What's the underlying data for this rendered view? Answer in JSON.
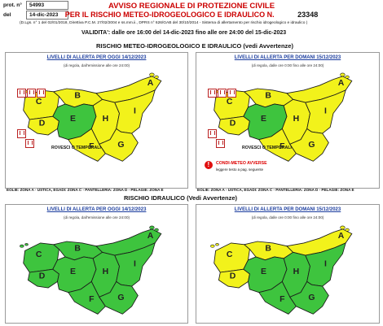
{
  "header": {
    "prot_label": "prot. n°",
    "prot_value": "54993",
    "del_label": "del",
    "del_value": "14-dic-2023",
    "title_line1": "AVVISO REGIONALE DI PROTEZIONE CIVILE",
    "title_line2": "PER IL RISCHIO METEO-IDROGEOLOGICO E IDRAULICO N.",
    "avviso_number": "23348",
    "legal_note": "(D.Lgs. n° 1 del 02/01/2018, Direttiva P.C.M. 27/02/2004 e ss.mm.ii., DPRS n° 626/GAB del 30/10/2014 - Sistema di allertamento per rischio idrogeologico e idraulico )",
    "validity": "VALIDITA': dalle ore    16:00  del    14-dic-2023    fino alle ore 24:00  del    15-dic-2023"
  },
  "section1": {
    "title": "RISCHIO METEO-IDROGEOLOGICO E IDRAULICO (vedi Avvertenze)",
    "today": {
      "title": "LIVELLI DI ALLERTA PER OGGI 14/12/2023",
      "subtitle": "(di regola, dall'emissione alle ore 24:00)",
      "legend_label": "ROVESCI O TEMPORALI"
    },
    "tomorrow": {
      "title": "LIVELLI DI ALLERTA PER DOMANI 15/12/2023",
      "subtitle": "(di regola, dalle ore 0:00 fino alle ore 24:00)",
      "legend_label": "ROVESCI O TEMPORALI",
      "warning_title": "CONDI-METEO AVVERSE",
      "warning_sub": "leggere testo a pag. seguente"
    },
    "islands_note": "EOLIE: ZONA A - USTICA, EGADI: ZONA C - PANTELLERIA: ZONA D - PELAGIE: ZONA E",
    "islands_note_right": "EOLIE: ZONA A - USTICA, EGADI: ZONA C - PANTELLERIA: ZONA D - PELAGIE: ZONA E"
  },
  "section2": {
    "title": "RISCHIO IDRAULICO (Vedi Avvertenze)",
    "today": {
      "title": "LIVELLI DI ALLERTA PER OGGI 14/12/2023",
      "subtitle": "(di regola, dall'emissione alle ore 24:00)"
    },
    "tomorrow": {
      "title": "LIVELLI DI ALLERTA PER DOMANI 15/12/2023",
      "subtitle": "(di regola, dalle ore 0:00 fino alle ore 24:00)"
    }
  },
  "zones": [
    "A",
    "B",
    "C",
    "D",
    "E",
    "F",
    "G",
    "H",
    "I"
  ],
  "colors": {
    "green": "#3ec43e",
    "yellow": "#f2f21b",
    "border": "#1a1a1a",
    "title_red": "#cc0000",
    "link_blue": "#1a3c9e"
  },
  "maps": {
    "meteo_today": {
      "A": "yellow",
      "B": "yellow",
      "C": "yellow",
      "D": "yellow",
      "E": "green",
      "F": "yellow",
      "G": "yellow",
      "H": "yellow",
      "I": "yellow"
    },
    "meteo_tomorrow": {
      "A": "yellow",
      "B": "yellow",
      "C": "yellow",
      "D": "yellow",
      "E": "green",
      "F": "yellow",
      "G": "yellow",
      "H": "yellow",
      "I": "yellow"
    },
    "idro_today": {
      "A": "green",
      "B": "green",
      "C": "green",
      "D": "green",
      "E": "green",
      "F": "green",
      "G": "green",
      "H": "green",
      "I": "green"
    },
    "idro_tomorrow": {
      "A": "yellow",
      "B": "yellow",
      "C": "yellow",
      "D": "yellow",
      "E": "green",
      "F": "green",
      "G": "green",
      "H": "green",
      "I": "green"
    }
  }
}
